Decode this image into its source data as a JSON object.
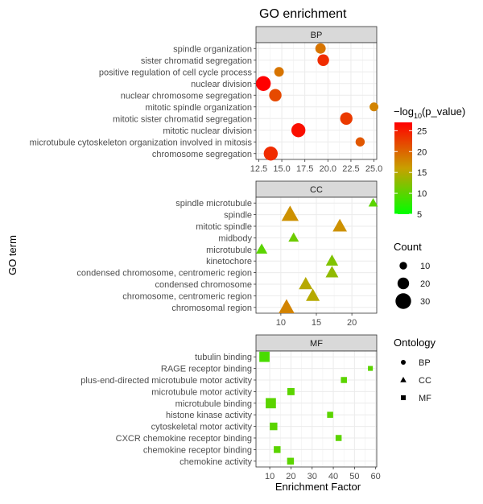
{
  "chart_data": {
    "type": "scatter",
    "title": "GO enrichment",
    "xlabel": "Enrichment Factor",
    "ylabel": "GO term",
    "color_legend": {
      "title_prefix": "−log",
      "title_sub": "10",
      "title_suffix": "(p_value)",
      "min": 5,
      "max": 27,
      "low_color": "#00ff00",
      "mid_color": "#c8a000",
      "high_color": "#ff0000",
      "ticks": [
        5,
        10,
        15,
        20,
        25
      ]
    },
    "size_legend": {
      "title": "Count",
      "values": [
        10,
        20,
        30
      ]
    },
    "shape_legend": {
      "title": "Ontology",
      "items": [
        "BP",
        "CC",
        "MF"
      ]
    },
    "panels": [
      {
        "name": "BP",
        "shape": "circle",
        "xlim": [
          12.2,
          25.3
        ],
        "xticks": [
          12.5,
          15.0,
          17.5,
          20.0,
          22.5,
          25.0
        ],
        "xtick_labels": [
          "12.5",
          "15.0",
          "17.5",
          "20.0",
          "22.5",
          "25.0"
        ],
        "terms": [
          "chromosome segregation",
          "microtubule cytoskeleton organization involved in mitosis",
          "mitotic nuclear division",
          "mitotic sister chromatid segregation",
          "mitotic spindle organization",
          "nuclear chromosome segregation",
          "nuclear division",
          "positive regulation of cell cycle process",
          "sister chromatid segregation",
          "spindle organization"
        ],
        "points": [
          {
            "x": 13.8,
            "y": 0,
            "neglogp": 24,
            "count": 26
          },
          {
            "x": 23.5,
            "y": 1,
            "neglogp": 21,
            "count": 14
          },
          {
            "x": 16.8,
            "y": 2,
            "neglogp": 26,
            "count": 26
          },
          {
            "x": 22.0,
            "y": 3,
            "neglogp": 23,
            "count": 22
          },
          {
            "x": 25.0,
            "y": 4,
            "neglogp": 18,
            "count": 13
          },
          {
            "x": 14.3,
            "y": 5,
            "neglogp": 22,
            "count": 22
          },
          {
            "x": 13.0,
            "y": 6,
            "neglogp": 27,
            "count": 28
          },
          {
            "x": 14.7,
            "y": 7,
            "neglogp": 19,
            "count": 15
          },
          {
            "x": 19.5,
            "y": 8,
            "neglogp": 24,
            "count": 20
          },
          {
            "x": 19.2,
            "y": 9,
            "neglogp": 19,
            "count": 17
          }
        ]
      },
      {
        "name": "CC",
        "shape": "triangle",
        "xlim": [
          6.5,
          23.5
        ],
        "xticks": [
          10,
          15,
          20
        ],
        "xtick_labels": [
          "10",
          "15",
          "20"
        ],
        "terms": [
          "chromosomal region",
          "chromosome, centromeric region",
          "condensed chromosome",
          "condensed chromosome, centromeric region",
          "kinetochore",
          "microtubule",
          "midbody",
          "mitotic spindle",
          "spindle",
          "spindle microtubule"
        ],
        "points": [
          {
            "x": 10.8,
            "y": 0,
            "neglogp": 18,
            "count": 24
          },
          {
            "x": 14.5,
            "y": 1,
            "neglogp": 15,
            "count": 20
          },
          {
            "x": 13.5,
            "y": 2,
            "neglogp": 15,
            "count": 20
          },
          {
            "x": 17.2,
            "y": 3,
            "neglogp": 13,
            "count": 18
          },
          {
            "x": 17.2,
            "y": 4,
            "neglogp": 12,
            "count": 17
          },
          {
            "x": 7.3,
            "y": 5,
            "neglogp": 10,
            "count": 15
          },
          {
            "x": 11.8,
            "y": 6,
            "neglogp": 11,
            "count": 13
          },
          {
            "x": 18.3,
            "y": 7,
            "neglogp": 17,
            "count": 21
          },
          {
            "x": 11.3,
            "y": 8,
            "neglogp": 17,
            "count": 27
          },
          {
            "x": 23.0,
            "y": 9,
            "neglogp": 10,
            "count": 11
          }
        ]
      },
      {
        "name": "MF",
        "shape": "square",
        "xlim": [
          3.5,
          60.5
        ],
        "xticks": [
          10,
          20,
          30,
          40,
          50,
          60
        ],
        "xtick_labels": [
          "10",
          "20",
          "30",
          "40",
          "50",
          "60"
        ],
        "terms": [
          "chemokine activity",
          "chemokine receptor binding",
          "CXCR chemokine receptor binding",
          "cytoskeletal motor activity",
          "histone kinase activity",
          "microtubule binding",
          "microtubule motor activity",
          "plus-end-directed microtubule motor activity",
          "RAGE receptor binding",
          "tubulin binding"
        ],
        "points": [
          {
            "x": 19.8,
            "y": 0,
            "neglogp": 10,
            "count": 9
          },
          {
            "x": 13.5,
            "y": 1,
            "neglogp": 10,
            "count": 9
          },
          {
            "x": 42.5,
            "y": 2,
            "neglogp": 10,
            "count": 7
          },
          {
            "x": 11.8,
            "y": 3,
            "neglogp": 10,
            "count": 11
          },
          {
            "x": 38.5,
            "y": 4,
            "neglogp": 10,
            "count": 7
          },
          {
            "x": 10.5,
            "y": 5,
            "neglogp": 10,
            "count": 18
          },
          {
            "x": 20.0,
            "y": 6,
            "neglogp": 10,
            "count": 10
          },
          {
            "x": 45.0,
            "y": 7,
            "neglogp": 10,
            "count": 7
          },
          {
            "x": 57.5,
            "y": 8,
            "neglogp": 10,
            "count": 4
          },
          {
            "x": 7.5,
            "y": 9,
            "neglogp": 9,
            "count": 18
          }
        ]
      }
    ]
  }
}
